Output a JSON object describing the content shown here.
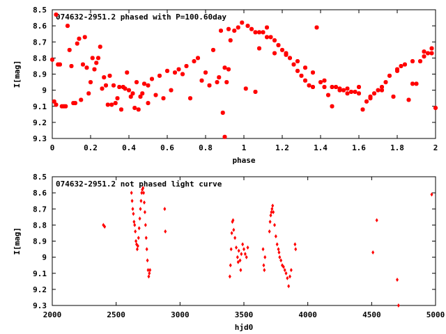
{
  "chart_data": [
    {
      "type": "scatter",
      "title": "074632-2951.2 phased with P=100.60day",
      "xlabel": "phase",
      "ylabel": "I[mag]",
      "xlim": [
        0,
        2
      ],
      "ylim": [
        8.5,
        9.3
      ],
      "y_inverted": true,
      "x_ticks": [
        "0",
        "0.2",
        "0.4",
        "0.6",
        "0.8",
        "1",
        "1.2",
        "1.4",
        "1.6",
        "1.8",
        "2"
      ],
      "y_ticks": [
        "8.5",
        "8.6",
        "8.7",
        "8.8",
        "8.9",
        "9",
        "9.1",
        "9.2",
        "9.3"
      ],
      "marker_color": "#ff0000",
      "grid": false,
      "series": [
        {
          "points": [
            [
              0.0,
              8.81
            ],
            [
              0.01,
              9.07
            ],
            [
              0.02,
              9.09
            ],
            [
              0.03,
              8.84
            ],
            [
              0.04,
              8.84
            ],
            [
              0.05,
              9.1
            ],
            [
              0.06,
              9.1
            ],
            [
              0.07,
              9.1
            ],
            [
              0.08,
              8.6
            ],
            [
              0.09,
              8.75
            ],
            [
              0.1,
              8.85
            ],
            [
              0.11,
              9.08
            ],
            [
              0.12,
              9.08
            ],
            [
              0.13,
              8.71
            ],
            [
              0.14,
              8.68
            ],
            [
              0.15,
              9.06
            ],
            [
              0.16,
              8.84
            ],
            [
              0.17,
              8.67
            ],
            [
              0.18,
              8.86
            ],
            [
              0.19,
              9.02
            ],
            [
              0.2,
              8.95
            ],
            [
              0.21,
              8.8
            ],
            [
              0.22,
              8.87
            ],
            [
              0.23,
              8.83
            ],
            [
              0.24,
              8.8
            ],
            [
              0.25,
              8.73
            ],
            [
              0.26,
              8.99
            ],
            [
              0.27,
              8.92
            ],
            [
              0.28,
              8.97
            ],
            [
              0.29,
              9.09
            ],
            [
              0.3,
              8.91
            ],
            [
              0.31,
              9.09
            ],
            [
              0.32,
              8.97
            ],
            [
              0.33,
              9.08
            ],
            [
              0.34,
              9.05
            ],
            [
              0.35,
              8.98
            ],
            [
              0.36,
              9.12
            ],
            [
              0.37,
              8.98
            ],
            [
              0.38,
              8.99
            ],
            [
              0.39,
              8.89
            ],
            [
              0.4,
              9.0
            ],
            [
              0.41,
              9.04
            ],
            [
              0.42,
              9.02
            ],
            [
              0.43,
              9.11
            ],
            [
              0.44,
              8.95
            ],
            [
              0.45,
              9.12
            ],
            [
              0.46,
              9.04
            ],
            [
              0.47,
              9.02
            ],
            [
              0.48,
              8.96
            ],
            [
              0.5,
              9.08
            ],
            [
              0.52,
              8.93
            ],
            [
              0.54,
              9.03
            ],
            [
              0.56,
              8.91
            ],
            [
              0.58,
              9.05
            ],
            [
              0.6,
              8.88
            ],
            [
              0.62,
              9.0
            ],
            [
              0.64,
              8.89
            ],
            [
              0.66,
              8.87
            ],
            [
              0.68,
              8.9
            ],
            [
              0.7,
              8.85
            ],
            [
              0.72,
              9.05
            ],
            [
              0.74,
              8.82
            ],
            [
              0.76,
              8.8
            ],
            [
              0.78,
              8.94
            ],
            [
              0.8,
              8.89
            ],
            [
              0.82,
              8.97
            ],
            [
              0.84,
              8.75
            ],
            [
              0.86,
              8.95
            ],
            [
              0.87,
              8.92
            ],
            [
              0.88,
              8.63
            ],
            [
              0.89,
              9.14
            ],
            [
              0.9,
              9.29
            ],
            [
              0.91,
              8.95
            ],
            [
              0.92,
              8.62
            ],
            [
              0.93,
              8.69
            ],
            [
              0.95,
              8.63
            ],
            [
              0.97,
              8.61
            ],
            [
              0.99,
              8.58
            ],
            [
              1.01,
              8.99
            ],
            [
              1.02,
              8.6
            ],
            [
              1.04,
              8.62
            ],
            [
              1.06,
              9.01
            ],
            [
              1.08,
              8.64
            ],
            [
              1.1,
              8.64
            ],
            [
              1.12,
              8.67
            ],
            [
              1.14,
              8.67
            ],
            [
              1.16,
              8.69
            ],
            [
              1.18,
              8.72
            ],
            [
              1.2,
              8.75
            ],
            [
              1.22,
              8.77
            ],
            [
              1.24,
              8.8
            ],
            [
              1.26,
              8.84
            ],
            [
              1.28,
              8.88
            ],
            [
              1.3,
              8.91
            ],
            [
              1.32,
              8.94
            ],
            [
              1.34,
              8.97
            ],
            [
              1.36,
              8.98
            ],
            [
              1.38,
              8.61
            ],
            [
              1.4,
              8.95
            ],
            [
              1.42,
              8.98
            ],
            [
              1.44,
              9.03
            ],
            [
              1.46,
              9.1
            ],
            [
              1.48,
              8.98
            ],
            [
              1.5,
              9.0
            ],
            [
              1.52,
              9.0
            ],
            [
              1.54,
              9.02
            ],
            [
              1.56,
              9.01
            ],
            [
              1.58,
              9.01
            ],
            [
              1.6,
              9.02
            ],
            [
              1.62,
              9.12
            ],
            [
              1.64,
              9.07
            ],
            [
              1.66,
              9.04
            ],
            [
              1.68,
              9.02
            ],
            [
              1.7,
              9.0
            ],
            [
              1.72,
              8.98
            ],
            [
              1.74,
              8.95
            ],
            [
              1.76,
              8.91
            ],
            [
              1.78,
              9.04
            ],
            [
              1.8,
              8.87
            ],
            [
              1.82,
              8.85
            ],
            [
              1.84,
              8.84
            ],
            [
              1.86,
              9.06
            ],
            [
              1.88,
              8.96
            ],
            [
              1.9,
              8.96
            ],
            [
              1.92,
              8.82
            ],
            [
              1.94,
              8.79
            ],
            [
              1.96,
              8.77
            ],
            [
              1.98,
              8.77
            ],
            [
              2.0,
              9.11
            ],
            [
              0.02,
              8.53
            ],
            [
              0.5,
              8.97
            ],
            [
              0.9,
              8.86
            ],
            [
              0.92,
              8.87
            ],
            [
              1.06,
              8.64
            ],
            [
              1.08,
              8.74
            ],
            [
              1.12,
              8.61
            ],
            [
              1.16,
              8.77
            ],
            [
              1.22,
              8.78
            ],
            [
              1.28,
              8.82
            ],
            [
              1.32,
              8.86
            ],
            [
              1.36,
              8.89
            ],
            [
              1.42,
              8.94
            ],
            [
              1.46,
              8.98
            ],
            [
              1.5,
              8.99
            ],
            [
              1.54,
              8.99
            ],
            [
              1.6,
              8.98
            ],
            [
              1.66,
              9.05
            ],
            [
              1.72,
              9.0
            ],
            [
              1.8,
              8.88
            ],
            [
              1.88,
              8.82
            ],
            [
              1.94,
              8.76
            ],
            [
              1.98,
              8.74
            ]
          ]
        }
      ]
    },
    {
      "type": "scatter",
      "title": "074632-2951.2 not phased light curve",
      "xlabel": "hjd0",
      "ylabel": "I[mag]",
      "xlim": [
        2000,
        5000
      ],
      "ylim": [
        8.5,
        9.3
      ],
      "y_inverted": true,
      "x_ticks": [
        "2000",
        "2500",
        "3000",
        "3500",
        "4000",
        "4500",
        "5000"
      ],
      "y_ticks": [
        "8.5",
        "8.6",
        "8.7",
        "8.8",
        "8.9",
        "9",
        "9.1",
        "9.2",
        "9.3"
      ],
      "marker_color": "#ff0000",
      "grid": false,
      "series": [
        {
          "points": [
            [
              2400,
              8.8
            ],
            [
              2410,
              8.81
            ],
            [
              2620,
              8.6
            ],
            [
              2625,
              8.65
            ],
            [
              2630,
              8.7
            ],
            [
              2635,
              8.73
            ],
            [
              2640,
              8.78
            ],
            [
              2645,
              8.8
            ],
            [
              2650,
              8.84
            ],
            [
              2655,
              8.9
            ],
            [
              2660,
              8.92
            ],
            [
              2665,
              8.95
            ],
            [
              2670,
              8.93
            ],
            [
              2675,
              8.88
            ],
            [
              2680,
              8.82
            ],
            [
              2685,
              8.76
            ],
            [
              2690,
              8.7
            ],
            [
              2695,
              8.65
            ],
            [
              2700,
              8.6
            ],
            [
              2705,
              8.58
            ],
            [
              2710,
              8.57
            ],
            [
              2715,
              8.6
            ],
            [
              2720,
              8.66
            ],
            [
              2725,
              8.72
            ],
            [
              2730,
              8.8
            ],
            [
              2735,
              8.88
            ],
            [
              2740,
              8.95
            ],
            [
              2745,
              9.02
            ],
            [
              2750,
              9.08
            ],
            [
              2755,
              9.12
            ],
            [
              2760,
              9.1
            ],
            [
              2765,
              9.08
            ],
            [
              2880,
              8.7
            ],
            [
              2885,
              8.84
            ],
            [
              3390,
              9.12
            ],
            [
              3395,
              9.05
            ],
            [
              3400,
              8.95
            ],
            [
              3405,
              8.85
            ],
            [
              3410,
              8.78
            ],
            [
              3415,
              8.77
            ],
            [
              3420,
              8.83
            ],
            [
              3430,
              8.88
            ],
            [
              3440,
              8.94
            ],
            [
              3450,
              9.0
            ],
            [
              3455,
              9.03
            ],
            [
              3460,
              8.96
            ],
            [
              3470,
              9.02
            ],
            [
              3475,
              9.08
            ],
            [
              3480,
              8.98
            ],
            [
              3490,
              8.92
            ],
            [
              3500,
              8.95
            ],
            [
              3510,
              8.98
            ],
            [
              3520,
              9.0
            ],
            [
              3530,
              8.94
            ],
            [
              3650,
              8.95
            ],
            [
              3655,
              9.05
            ],
            [
              3660,
              9.08
            ],
            [
              3665,
              9.0
            ],
            [
              3700,
              8.84
            ],
            [
              3705,
              8.78
            ],
            [
              3710,
              8.74
            ],
            [
              3715,
              8.72
            ],
            [
              3720,
              8.7
            ],
            [
              3725,
              8.68
            ],
            [
              3730,
              8.72
            ],
            [
              3740,
              8.8
            ],
            [
              3750,
              8.87
            ],
            [
              3760,
              8.92
            ],
            [
              3770,
              8.95
            ],
            [
              3775,
              8.97
            ],
            [
              3780,
              9.0
            ],
            [
              3790,
              9.02
            ],
            [
              3800,
              9.05
            ],
            [
              3810,
              9.06
            ],
            [
              3820,
              9.08
            ],
            [
              3830,
              9.1
            ],
            [
              3840,
              9.13
            ],
            [
              3850,
              9.18
            ],
            [
              3860,
              9.12
            ],
            [
              3870,
              9.08
            ],
            [
              3900,
              8.92
            ],
            [
              3905,
              8.95
            ],
            [
              4510,
              8.97
            ],
            [
              4540,
              8.77
            ],
            [
              4700,
              9.14
            ],
            [
              4710,
              9.3
            ],
            [
              4970,
              8.61
            ]
          ]
        }
      ]
    }
  ]
}
